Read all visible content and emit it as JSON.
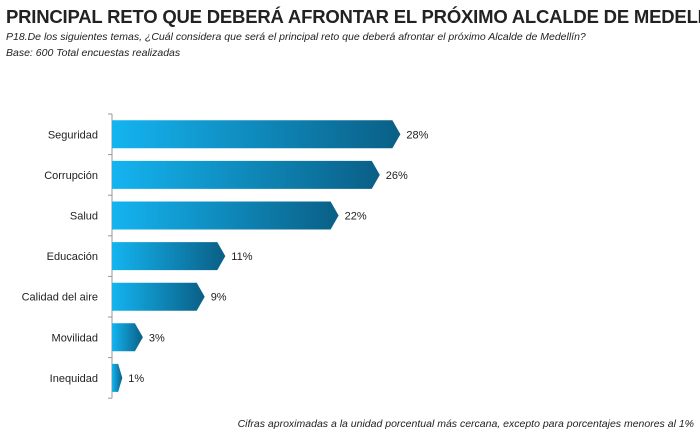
{
  "title": "PRINCIPAL RETO QUE DEBERÁ AFRONTAR EL PRÓXIMO ALCALDE DE MEDELLÍN",
  "question": "P18.De los siguientes temas, ¿Cuál considera que será el principal reto que deberá afrontar el próximo Alcalde de Medellín?",
  "base": "Base: 600 Total encuestas realizadas",
  "footnote": "Cifras aproximadas a la unidad porcentual más cercana, excepto para porcentajes menores al 1%",
  "colors": {
    "bar_start": "#14b4f0",
    "bar_end": "#0a5f86"
  },
  "chart_data": {
    "type": "bar",
    "orientation": "horizontal",
    "categories": [
      "Seguridad",
      "Corrupción",
      "Salud",
      "Educación",
      "Calidad del aire",
      "Movilidad",
      "Inequidad"
    ],
    "values": [
      28,
      26,
      22,
      11,
      9,
      3,
      1
    ],
    "labels": [
      "28%",
      "26%",
      "22%",
      "11%",
      "9%",
      "3%",
      "1%"
    ],
    "unit": "%",
    "xlim": [
      0,
      28
    ],
    "grid": false,
    "legend": "none"
  }
}
